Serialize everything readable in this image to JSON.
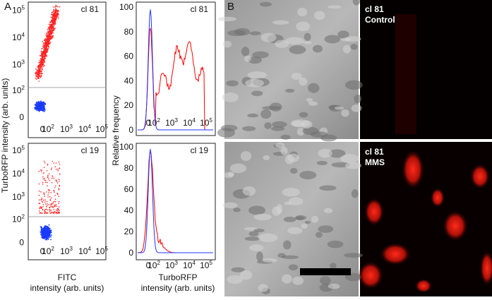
{
  "panel_labels": [
    "A",
    "B"
  ],
  "scatter": {
    "y_title": "TurboRFP intensity (arb. units)",
    "x_title": [
      "FITC",
      "intensity (arb. units)"
    ],
    "plots": [
      {
        "label": "cl 81"
      },
      {
        "label": "cl 19"
      }
    ],
    "zero": "0",
    "log_ticks": [
      {
        "base": "10",
        "exp": "2"
      },
      {
        "base": "10",
        "exp": "3"
      },
      {
        "base": "10",
        "exp": "4"
      },
      {
        "base": "10",
        "exp": "5"
      }
    ]
  },
  "histogram": {
    "y_title": "Relative frequency",
    "x_title": [
      "TurboRFP",
      "intensity (arb. units)"
    ],
    "plots": [
      {
        "label": "cl 81"
      },
      {
        "label": "cl 19"
      }
    ],
    "y_ticks": [
      "0",
      "20",
      "40",
      "60",
      "80",
      "100"
    ]
  },
  "images": [
    {
      "label": [
        "cl 81",
        "Control"
      ]
    },
    {
      "label": [
        "cl 81",
        "MMS"
      ]
    }
  ]
}
